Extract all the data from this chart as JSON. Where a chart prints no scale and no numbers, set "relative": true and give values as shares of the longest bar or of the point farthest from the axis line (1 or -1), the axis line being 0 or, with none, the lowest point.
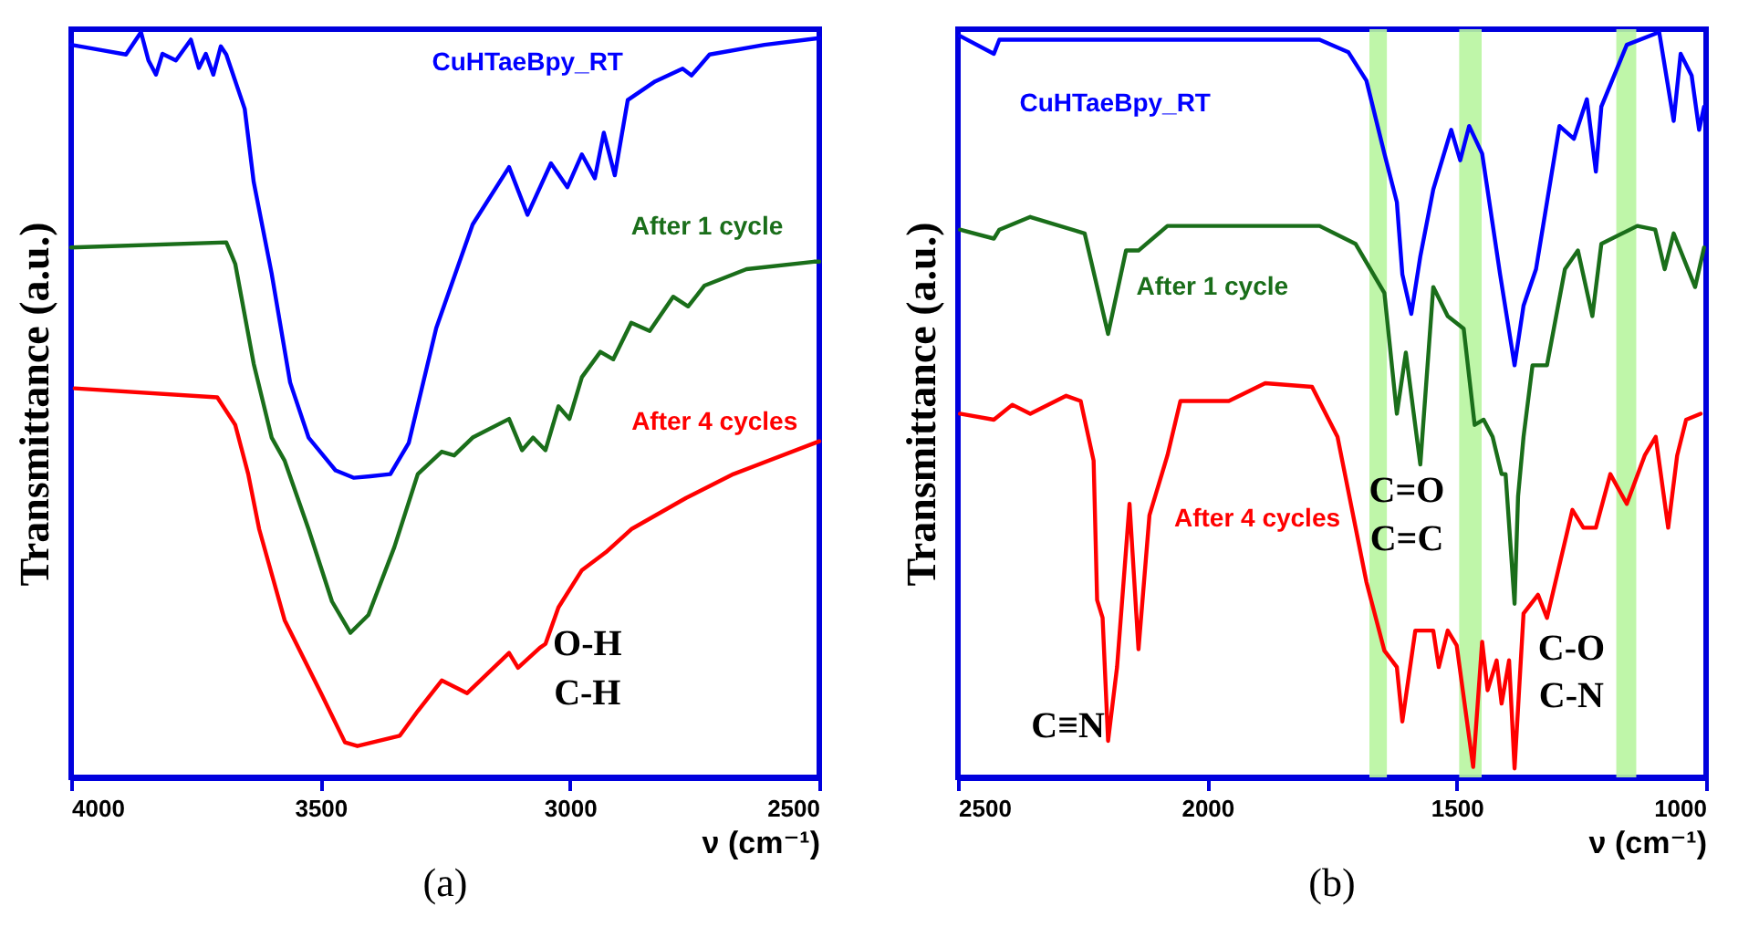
{
  "chart_data": [
    {
      "type": "line",
      "relative": true,
      "xlabel": "ν (cm⁻¹)",
      "ylabel": "Transmittance (a.u.)",
      "xlim": [
        4000,
        2500
      ],
      "xticks": [
        4000,
        3500,
        3000,
        2500
      ],
      "legend": false,
      "series": [
        {
          "name": "CuHTaeBpy_RT",
          "color": "#0000ff",
          "x": [
            4000,
            3940,
            3890,
            3860,
            3845,
            3830,
            3817,
            3790,
            3760,
            3744,
            3730,
            3715,
            3700,
            3689,
            3652,
            3634,
            3598,
            3561,
            3524,
            3470,
            3433,
            3400,
            3360,
            3323,
            3268,
            3195,
            3122,
            3085,
            3038,
            3005,
            2976,
            2950,
            2932,
            2910,
            2884,
            2829,
            2774,
            2756,
            2720,
            2610,
            2500
          ],
          "values": [
            0.983,
            0.976,
            0.97,
            1.0,
            0.962,
            0.943,
            0.971,
            0.962,
            0.99,
            0.952,
            0.971,
            0.943,
            0.981,
            0.97,
            0.897,
            0.799,
            0.676,
            0.53,
            0.456,
            0.412,
            0.402,
            0.404,
            0.407,
            0.449,
            0.603,
            0.742,
            0.819,
            0.755,
            0.824,
            0.792,
            0.836,
            0.804,
            0.865,
            0.808,
            0.909,
            0.934,
            0.951,
            0.942,
            0.97,
            0.983,
            0.992
          ]
        },
        {
          "name": "After 1 cycle",
          "color": "#1a6e1a",
          "x": [
            4000,
            3689,
            3671,
            3634,
            3598,
            3572,
            3524,
            3477,
            3440,
            3404,
            3352,
            3305,
            3257,
            3232,
            3195,
            3122,
            3096,
            3074,
            3049,
            3023,
            3001,
            2976,
            2939,
            2913,
            2877,
            2840,
            2793,
            2763,
            2730,
            2646,
            2511,
            2500
          ],
          "values": [
            0.711,
            0.718,
            0.689,
            0.555,
            0.456,
            0.425,
            0.333,
            0.236,
            0.194,
            0.218,
            0.309,
            0.407,
            0.437,
            0.432,
            0.456,
            0.481,
            0.439,
            0.456,
            0.439,
            0.498,
            0.481,
            0.537,
            0.571,
            0.561,
            0.61,
            0.599,
            0.645,
            0.632,
            0.66,
            0.682,
            0.692,
            0.692
          ]
        },
        {
          "name": "After 4 cycles",
          "color": "#ff0000",
          "x": [
            3993,
            3707,
            3671,
            3645,
            3623,
            3572,
            3499,
            3451,
            3426,
            3341,
            3305,
            3257,
            3206,
            3122,
            3104,
            3060,
            3049,
            3023,
            2976,
            2928,
            2877,
            2767,
            2672,
            2500
          ],
          "values": [
            0.522,
            0.51,
            0.473,
            0.407,
            0.333,
            0.211,
            0.113,
            0.047,
            0.042,
            0.056,
            0.089,
            0.13,
            0.113,
            0.167,
            0.147,
            0.174,
            0.179,
            0.228,
            0.278,
            0.302,
            0.333,
            0.375,
            0.407,
            0.451
          ]
        }
      ],
      "annotations": [
        "O-H",
        "C-H",
        "(a)"
      ]
    },
    {
      "type": "line",
      "relative": true,
      "xlabel": "ν (cm⁻¹)",
      "ylabel": "Transmittance (a.u.)",
      "xlim": [
        2500,
        1000
      ],
      "xticks": [
        2500,
        2000,
        1500,
        1000
      ],
      "legend": false,
      "bands": [
        {
          "axis": "x",
          "from": 1675,
          "to": 1640,
          "color": "#b8f5a0"
        },
        {
          "axis": "x",
          "from": 1495,
          "to": 1450,
          "color": "#b8f5a0"
        },
        {
          "axis": "x",
          "from": 1180,
          "to": 1140,
          "color": "#b8f5a0"
        }
      ],
      "series": [
        {
          "name": "CuHTaeBpy_RT",
          "color": "#0000ff",
          "x": [
            2496,
            2428,
            2417,
            2200,
            2000,
            1775,
            1717,
            1681,
            1645,
            1620,
            1609,
            1591,
            1573,
            1547,
            1511,
            1493,
            1475,
            1449,
            1413,
            1384,
            1366,
            1341,
            1294,
            1265,
            1239,
            1221,
            1210,
            1159,
            1094,
            1065,
            1051,
            1029,
            1014,
            1004
          ],
          "values": [
            0.995,
            0.971,
            0.99,
            0.99,
            0.99,
            0.99,
            0.973,
            0.935,
            0.837,
            0.772,
            0.675,
            0.622,
            0.699,
            0.789,
            0.869,
            0.828,
            0.874,
            0.837,
            0.675,
            0.553,
            0.633,
            0.682,
            0.874,
            0.857,
            0.91,
            0.813,
            0.9,
            0.983,
            1.0,
            0.881,
            0.971,
            0.942,
            0.869,
            0.9
          ]
        },
        {
          "name": "After 1 cycle",
          "color": "#1a6e1a",
          "x": [
            2496,
            2428,
            2417,
            2355,
            2246,
            2199,
            2163,
            2138,
            2080,
            1775,
            1703,
            1645,
            1620,
            1602,
            1573,
            1547,
            1518,
            1486,
            1464,
            1446,
            1428,
            1410,
            1402,
            1384,
            1377,
            1366,
            1348,
            1319,
            1283,
            1257,
            1228,
            1210,
            1138,
            1102,
            1083,
            1065,
            1022,
            1004
          ],
          "values": [
            0.735,
            0.723,
            0.735,
            0.752,
            0.73,
            0.595,
            0.707,
            0.707,
            0.74,
            0.74,
            0.716,
            0.65,
            0.488,
            0.57,
            0.42,
            0.658,
            0.619,
            0.602,
            0.473,
            0.48,
            0.457,
            0.407,
            0.407,
            0.233,
            0.377,
            0.457,
            0.553,
            0.553,
            0.682,
            0.707,
            0.619,
            0.716,
            0.74,
            0.735,
            0.682,
            0.73,
            0.658,
            0.711
          ]
        },
        {
          "name": "After 4 cycles",
          "color": "#ff0000",
          "x": [
            2496,
            2428,
            2391,
            2355,
            2283,
            2254,
            2228,
            2221,
            2210,
            2199,
            2181,
            2156,
            2138,
            2116,
            2080,
            2054,
            1957,
            1884,
            1790,
            1739,
            1681,
            1645,
            1620,
            1609,
            1583,
            1547,
            1536,
            1518,
            1500,
            1467,
            1449,
            1438,
            1420,
            1410,
            1395,
            1384,
            1366,
            1337,
            1319,
            1268,
            1246,
            1221,
            1192,
            1159,
            1123,
            1101,
            1076,
            1058,
            1040,
            1011
          ],
          "values": [
            0.488,
            0.48,
            0.5,
            0.488,
            0.512,
            0.505,
            0.425,
            0.238,
            0.214,
            0.049,
            0.148,
            0.367,
            0.172,
            0.352,
            0.432,
            0.505,
            0.505,
            0.529,
            0.524,
            0.457,
            0.262,
            0.17,
            0.148,
            0.075,
            0.197,
            0.197,
            0.148,
            0.197,
            0.177,
            0.014,
            0.182,
            0.117,
            0.157,
            0.099,
            0.157,
            0.012,
            0.22,
            0.245,
            0.214,
            0.359,
            0.335,
            0.335,
            0.407,
            0.367,
            0.432,
            0.457,
            0.335,
            0.432,
            0.48,
            0.488
          ]
        }
      ],
      "annotations": [
        "C≡N",
        "C=O",
        "C=C",
        "C-O",
        "C-N",
        "(b)"
      ]
    }
  ]
}
